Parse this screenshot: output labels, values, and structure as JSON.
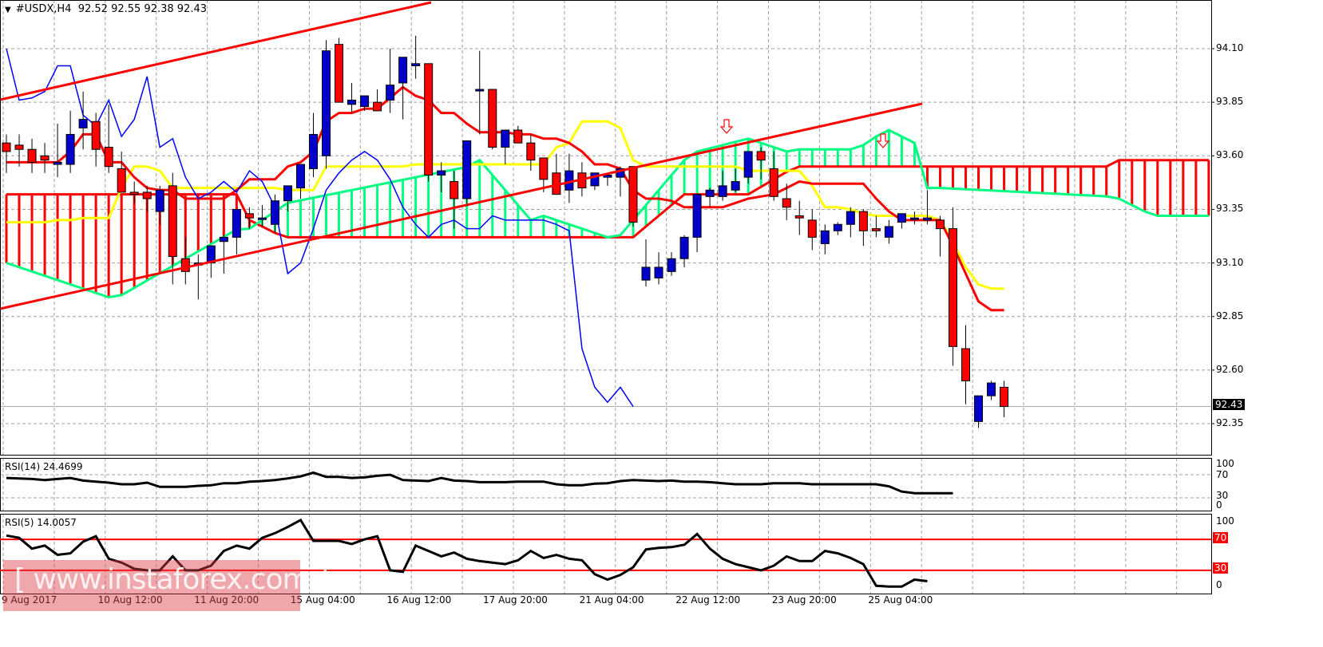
{
  "header": {
    "symbol": "#USDX,H4",
    "ohlc": "92.52 92.55 92.38 92.43",
    "menu_icon": "triangle-down-icon"
  },
  "price_axis": {
    "labels": [
      "94.10",
      "93.85",
      "93.60",
      "93.35",
      "93.10",
      "92.85",
      "92.60",
      "92.35"
    ],
    "current": "92.43"
  },
  "rsi14": {
    "label": "RSI(14) 24.4699",
    "axis": [
      "100",
      "70",
      "30",
      "0"
    ]
  },
  "rsi5": {
    "label": "RSI(5) 14.0057",
    "axis": [
      "100",
      "70",
      "30",
      "0"
    ],
    "levels": [
      "70",
      "30"
    ]
  },
  "time_axis": [
    "9 Aug 2017",
    "10 Aug 12:00",
    "11 Aug 20:00",
    "15 Aug 04:00",
    "16 Aug 12:00",
    "17 Aug 20:00",
    "21 Aug 04:00",
    "22 Aug 12:00",
    "23 Aug 20:00",
    "25 Aug 04:00"
  ],
  "watermark": "[ www.instaforex.com ]",
  "colors": {
    "bull": "#0000cc",
    "bear": "#ff0000",
    "tenkan": "#ff0000",
    "kijun": "#ffff00",
    "chikou": "#0000ff",
    "span_a": "#00ff80",
    "span_b": "#ff0000",
    "trendline": "#ff0000",
    "grid": "#a0a0a0"
  },
  "chart_data": {
    "type": "candlestick",
    "title": "#USDX,H4 92.52 92.55 92.38 92.43",
    "xlabel": "",
    "ylabel": "",
    "ylim": [
      92.25,
      94.25
    ],
    "grid": true,
    "categories": [
      "9 Aug 2017",
      "10 Aug 12:00",
      "11 Aug 20:00",
      "15 Aug 04:00",
      "16 Aug 12:00",
      "17 Aug 20:00",
      "21 Aug 04:00",
      "22 Aug 12:00",
      "23 Aug 20:00",
      "25 Aug 04:00"
    ],
    "candles": [
      [
        93.66,
        93.7,
        93.52,
        93.62
      ],
      [
        93.65,
        93.7,
        93.55,
        93.63
      ],
      [
        93.63,
        93.68,
        93.52,
        93.57
      ],
      [
        93.6,
        93.66,
        93.52,
        93.58
      ],
      [
        93.56,
        93.75,
        93.5,
        93.57
      ],
      [
        93.56,
        93.81,
        93.52,
        93.7
      ],
      [
        93.73,
        93.9,
        93.63,
        93.77
      ],
      [
        93.76,
        93.8,
        93.55,
        93.63
      ],
      [
        93.64,
        93.84,
        93.52,
        93.55
      ],
      [
        93.54,
        93.62,
        93.48,
        93.43
      ],
      [
        93.43,
        93.48,
        93.38,
        93.42
      ],
      [
        93.43,
        93.46,
        93.34,
        93.4
      ],
      [
        93.34,
        93.46,
        93.28,
        93.44
      ],
      [
        93.46,
        93.52,
        93.0,
        93.13
      ],
      [
        93.12,
        93.22,
        93.0,
        93.06
      ],
      [
        93.09,
        93.14,
        92.93,
        93.1
      ],
      [
        93.1,
        93.17,
        93.03,
        93.18
      ],
      [
        93.2,
        93.23,
        93.05,
        93.22
      ],
      [
        93.22,
        93.29,
        93.14,
        93.35
      ],
      [
        93.33,
        93.36,
        93.26,
        93.31
      ],
      [
        93.31,
        93.37,
        93.27,
        93.31
      ],
      [
        93.28,
        93.42,
        93.24,
        93.39
      ],
      [
        93.39,
        93.44,
        93.34,
        93.46
      ],
      [
        93.45,
        93.55,
        93.4,
        93.56
      ],
      [
        93.54,
        93.8,
        93.5,
        93.7
      ],
      [
        93.6,
        94.14,
        93.54,
        94.09
      ],
      [
        94.12,
        94.15,
        93.9,
        93.85
      ],
      [
        93.84,
        93.94,
        93.8,
        93.86
      ],
      [
        93.83,
        93.87,
        93.81,
        93.88
      ],
      [
        93.85,
        93.91,
        93.82,
        93.81
      ],
      [
        93.86,
        94.1,
        93.8,
        93.93
      ],
      [
        93.94,
        94.02,
        93.77,
        94.06
      ],
      [
        94.02,
        94.16,
        93.96,
        94.03
      ],
      [
        94.03,
        94.03,
        93.48,
        93.51
      ],
      [
        93.51,
        93.57,
        93.43,
        93.53
      ],
      [
        93.48,
        93.53,
        93.26,
        93.4
      ],
      [
        93.4,
        93.67,
        93.37,
        93.67
      ],
      [
        93.91,
        94.09,
        93.7,
        93.91
      ],
      [
        93.91,
        93.91,
        93.63,
        93.64
      ],
      [
        93.64,
        93.68,
        93.56,
        93.72
      ],
      [
        93.72,
        93.74,
        93.67,
        93.66
      ],
      [
        93.66,
        93.7,
        93.53,
        93.58
      ],
      [
        93.59,
        93.57,
        93.43,
        93.49
      ],
      [
        93.52,
        93.61,
        93.43,
        93.42
      ],
      [
        93.44,
        93.61,
        93.38,
        93.53
      ],
      [
        93.52,
        93.57,
        93.41,
        93.45
      ],
      [
        93.46,
        93.52,
        93.44,
        93.52
      ],
      [
        93.5,
        93.51,
        93.46,
        93.51
      ],
      [
        93.5,
        93.55,
        93.41,
        93.54
      ],
      [
        93.55,
        93.55,
        93.27,
        93.29
      ],
      [
        93.02,
        93.21,
        92.99,
        93.08
      ],
      [
        93.03,
        93.15,
        93.0,
        93.08
      ],
      [
        93.06,
        93.15,
        93.04,
        93.12
      ],
      [
        93.12,
        93.23,
        93.08,
        93.22
      ],
      [
        93.22,
        93.42,
        93.15,
        93.42
      ],
      [
        93.41,
        93.45,
        93.36,
        93.44
      ],
      [
        93.41,
        93.53,
        93.39,
        93.46
      ],
      [
        93.44,
        93.54,
        93.43,
        93.48
      ],
      [
        93.5,
        93.62,
        93.47,
        93.62
      ],
      [
        93.62,
        93.64,
        93.49,
        93.58
      ],
      [
        93.54,
        93.62,
        93.39,
        93.41
      ],
      [
        93.4,
        93.47,
        93.3,
        93.36
      ],
      [
        93.32,
        93.39,
        93.23,
        93.31
      ],
      [
        93.3,
        93.35,
        93.16,
        93.22
      ],
      [
        93.19,
        93.28,
        93.14,
        93.25
      ],
      [
        93.25,
        93.29,
        93.23,
        93.28
      ],
      [
        93.28,
        93.36,
        93.22,
        93.34
      ],
      [
        93.34,
        93.35,
        93.18,
        93.25
      ],
      [
        93.26,
        93.32,
        93.22,
        93.25
      ],
      [
        93.22,
        93.3,
        93.19,
        93.27
      ],
      [
        93.29,
        93.32,
        93.26,
        93.33
      ],
      [
        93.31,
        93.34,
        93.28,
        93.31
      ],
      [
        93.3,
        93.44,
        93.28,
        93.31
      ],
      [
        93.3,
        93.32,
        93.13,
        93.26
      ],
      [
        93.26,
        93.36,
        92.62,
        92.71
      ],
      [
        92.7,
        92.81,
        92.44,
        92.55
      ],
      [
        92.36,
        92.48,
        92.33,
        92.48
      ],
      [
        92.48,
        92.55,
        92.46,
        92.54
      ],
      [
        92.52,
        92.55,
        92.38,
        92.43
      ]
    ],
    "series": [
      {
        "name": "RSI(14)",
        "last": 24.4699
      },
      {
        "name": "RSI(5)",
        "last": 14.0057
      }
    ],
    "annotations": [
      "down-arrow near 22 Aug 12:00",
      "down-arrow near 25 Aug 00:00",
      "rising channel trendlines"
    ],
    "indicator_ranges": {
      "rsi14": [
        0,
        100
      ],
      "rsi5": [
        0,
        100
      ],
      "rsi5_levels": [
        30,
        70
      ]
    }
  }
}
